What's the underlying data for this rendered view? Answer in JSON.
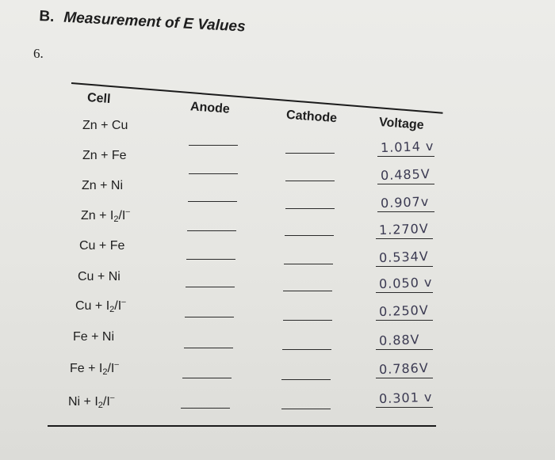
{
  "section": {
    "letter": "B.",
    "title": "Measurement of E Values"
  },
  "question_number": "6.",
  "table": {
    "headers": {
      "cell": "Cell",
      "anode": "Anode",
      "cathode": "Cathode",
      "voltage": "Voltage"
    },
    "rows": [
      {
        "cell": "Zn + Cu",
        "anode": "",
        "cathode": "",
        "voltage": "1.014 v"
      },
      {
        "cell": "Zn + Fe",
        "anode": "",
        "cathode": "",
        "voltage": "0.485V"
      },
      {
        "cell": "Zn + Ni",
        "anode": "",
        "cathode": "",
        "voltage": "0.907v"
      },
      {
        "cell": "Zn + I2/I-",
        "anode": "",
        "cathode": "",
        "voltage": "1.270V"
      },
      {
        "cell": "Cu + Fe",
        "anode": "",
        "cathode": "",
        "voltage": "0.534V"
      },
      {
        "cell": "Cu + Ni",
        "anode": "",
        "cathode": "",
        "voltage": "0.050 v"
      },
      {
        "cell": "Cu + I2/I-",
        "anode": "",
        "cathode": "",
        "voltage": "0.250V"
      },
      {
        "cell": "Fe + Ni",
        "anode": "",
        "cathode": "",
        "voltage": "0.88V"
      },
      {
        "cell": "Fe + I2/I-",
        "anode": "",
        "cathode": "",
        "voltage": "0.786V"
      },
      {
        "cell": "Ni + I2/I-",
        "anode": "",
        "cathode": "",
        "voltage": "0.301 v"
      }
    ]
  }
}
